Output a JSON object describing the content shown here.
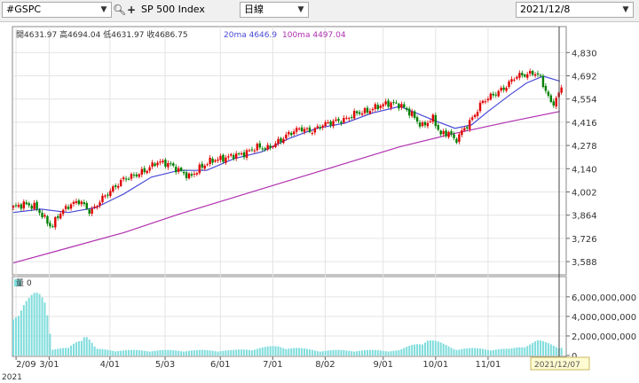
{
  "toolbar": {
    "symbol": "#GSPC",
    "name": "SP 500 Index",
    "period": "日線",
    "date": "2021/12/8",
    "zoom_icon": "magnifier-icon",
    "add_icon": "plus-icon"
  },
  "ohlc": {
    "open_label": "開",
    "open": "4631.97",
    "high_label": "高",
    "high": "4694.04",
    "low_label": "低",
    "low": "4631.97",
    "close_label": "收",
    "close": "4686.75",
    "ma20_label": "20ma",
    "ma20": "4646.9",
    "ma100_label": "100ma",
    "ma100": "4497.04"
  },
  "volume_panel": {
    "label": "量",
    "value": "0"
  },
  "colors": {
    "up": "#e00000",
    "down": "#008000",
    "ma20": "#4a4ad8",
    "ma100": "#b030b0",
    "volume": "#7fdcdc"
  },
  "chart_data": {
    "type": "candlestick",
    "price_axis": {
      "ticks": [
        "4,830",
        "4,692",
        "4,554",
        "4,416",
        "4,278",
        "4,140",
        "4,002",
        "3,864",
        "3,726",
        "3,588"
      ],
      "range": [
        3520,
        4900
      ]
    },
    "volume_axis": {
      "ticks": [
        "6,000,000,000",
        "4,000,000,000",
        "2,000,000,000",
        "0"
      ],
      "range": [
        0,
        6800000000
      ]
    },
    "x_labels": [
      "2/09",
      "3/01",
      "4/01",
      "5/03",
      "6/01",
      "7/01",
      "8/02",
      "9/01",
      "10/01",
      "11/01"
    ],
    "x_label_positions": [
      0.005,
      0.065,
      0.175,
      0.275,
      0.375,
      0.47,
      0.565,
      0.67,
      0.765,
      0.86
    ],
    "year_label": "2021",
    "cursor_date": "2021/12/07",
    "close_path": [
      [
        0.0,
        3910
      ],
      [
        0.02,
        3930
      ],
      [
        0.04,
        3915
      ],
      [
        0.055,
        3850
      ],
      [
        0.07,
        3790
      ],
      [
        0.08,
        3860
      ],
      [
        0.1,
        3920
      ],
      [
        0.12,
        3950
      ],
      [
        0.14,
        3880
      ],
      [
        0.16,
        3960
      ],
      [
        0.18,
        4020
      ],
      [
        0.2,
        4080
      ],
      [
        0.22,
        4100
      ],
      [
        0.24,
        4130
      ],
      [
        0.26,
        4180
      ],
      [
        0.28,
        4170
      ],
      [
        0.3,
        4130
      ],
      [
        0.32,
        4090
      ],
      [
        0.34,
        4150
      ],
      [
        0.36,
        4190
      ],
      [
        0.38,
        4200
      ],
      [
        0.4,
        4220
      ],
      [
        0.42,
        4230
      ],
      [
        0.44,
        4270
      ],
      [
        0.46,
        4260
      ],
      [
        0.48,
        4300
      ],
      [
        0.5,
        4350
      ],
      [
        0.52,
        4380
      ],
      [
        0.54,
        4360
      ],
      [
        0.56,
        4400
      ],
      [
        0.58,
        4420
      ],
      [
        0.6,
        4430
      ],
      [
        0.62,
        4470
      ],
      [
        0.64,
        4480
      ],
      [
        0.66,
        4510
      ],
      [
        0.68,
        4530
      ],
      [
        0.7,
        4520
      ],
      [
        0.72,
        4470
      ],
      [
        0.74,
        4390
      ],
      [
        0.76,
        4440
      ],
      [
        0.775,
        4340
      ],
      [
        0.79,
        4360
      ],
      [
        0.8,
        4300
      ],
      [
        0.81,
        4350
      ],
      [
        0.83,
        4430
      ],
      [
        0.85,
        4540
      ],
      [
        0.87,
        4580
      ],
      [
        0.89,
        4620
      ],
      [
        0.91,
        4690
      ],
      [
        0.93,
        4700
      ],
      [
        0.945,
        4710
      ],
      [
        0.955,
        4680
      ],
      [
        0.965,
        4600
      ],
      [
        0.975,
        4520
      ],
      [
        0.985,
        4560
      ],
      [
        0.993,
        4620
      ]
    ],
    "ma20_path": [
      [
        0.0,
        3880
      ],
      [
        0.05,
        3900
      ],
      [
        0.1,
        3880
      ],
      [
        0.15,
        3910
      ],
      [
        0.2,
        3990
      ],
      [
        0.25,
        4090
      ],
      [
        0.3,
        4130
      ],
      [
        0.35,
        4130
      ],
      [
        0.4,
        4200
      ],
      [
        0.45,
        4240
      ],
      [
        0.5,
        4320
      ],
      [
        0.55,
        4380
      ],
      [
        0.6,
        4410
      ],
      [
        0.65,
        4470
      ],
      [
        0.7,
        4510
      ],
      [
        0.73,
        4470
      ],
      [
        0.76,
        4430
      ],
      [
        0.8,
        4380
      ],
      [
        0.83,
        4400
      ],
      [
        0.86,
        4480
      ],
      [
        0.9,
        4580
      ],
      [
        0.93,
        4650
      ],
      [
        0.96,
        4690
      ],
      [
        0.99,
        4660
      ]
    ],
    "ma100_path": [
      [
        0.0,
        3580
      ],
      [
        0.1,
        3670
      ],
      [
        0.2,
        3760
      ],
      [
        0.3,
        3870
      ],
      [
        0.4,
        3970
      ],
      [
        0.5,
        4070
      ],
      [
        0.6,
        4170
      ],
      [
        0.7,
        4270
      ],
      [
        0.8,
        4350
      ],
      [
        0.9,
        4420
      ],
      [
        0.99,
        4480
      ]
    ],
    "volume_path": [
      [
        0.0,
        4600000000
      ],
      [
        0.01,
        4200000000
      ],
      [
        0.02,
        4800000000
      ],
      [
        0.03,
        5200000000
      ],
      [
        0.04,
        5800000000
      ],
      [
        0.05,
        6200000000
      ],
      [
        0.06,
        6100000000
      ],
      [
        0.07,
        600000000
      ],
      [
        0.1,
        700000000
      ],
      [
        0.13,
        2200000000
      ],
      [
        0.15,
        600000000
      ],
      [
        0.2,
        500000000
      ],
      [
        0.3,
        500000000
      ],
      [
        0.4,
        500000000
      ],
      [
        0.48,
        900000000
      ],
      [
        0.55,
        500000000
      ],
      [
        0.6,
        500000000
      ],
      [
        0.7,
        500000000
      ],
      [
        0.75,
        1600000000
      ],
      [
        0.8,
        700000000
      ],
      [
        0.9,
        600000000
      ],
      [
        0.95,
        1400000000
      ],
      [
        0.99,
        900000000
      ]
    ]
  }
}
